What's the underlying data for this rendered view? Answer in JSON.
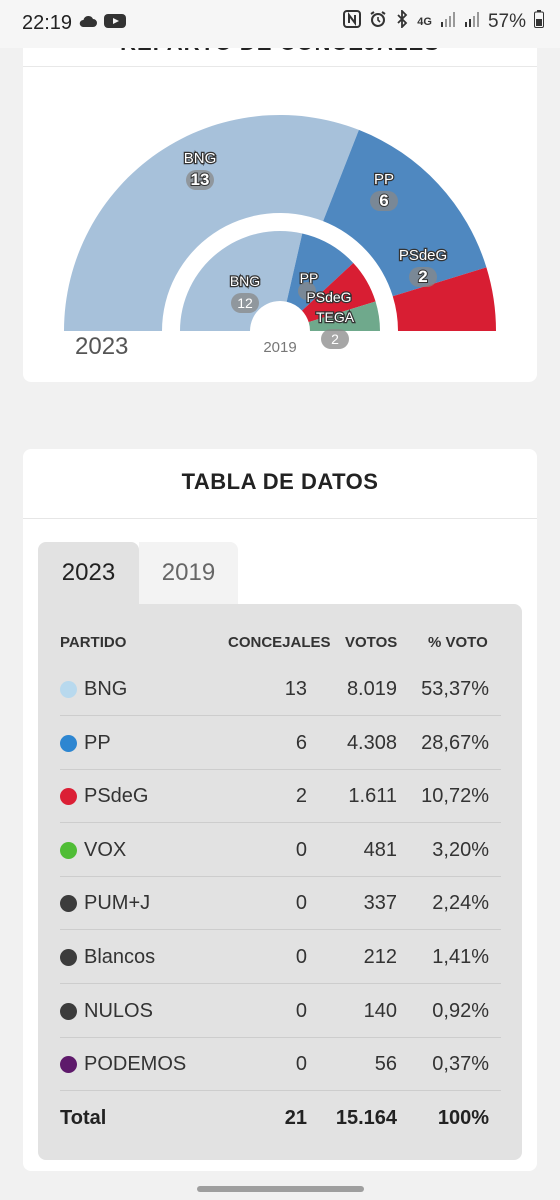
{
  "status_bar": {
    "time": "22:19",
    "network": "4G",
    "battery": "57%",
    "icons": [
      "cloud-icon",
      "youtube-icon",
      "nfc-icon",
      "alarm-icon",
      "bluetooth-icon",
      "signal-icon",
      "signal-icon",
      "battery-icon"
    ]
  },
  "chart_card": {
    "title": "REPARTO DE CONCEJALES"
  },
  "chart_data": {
    "type": "pie",
    "variant": "nested-semicircle-parliament",
    "series": [
      {
        "name": "2023",
        "slices": [
          {
            "label": "BNG",
            "value": 13,
            "color": "#a7c1da"
          },
          {
            "label": "PP",
            "value": 6,
            "color": "#4f88c0"
          },
          {
            "label": "PSdeG",
            "value": 2,
            "color": "#d81e33"
          }
        ]
      },
      {
        "name": "2019",
        "slices": [
          {
            "label": "BNG",
            "value": 12,
            "color": "#a7c1da"
          },
          {
            "label": "PP",
            "value": 4,
            "color": "#4f88c0"
          },
          {
            "label": "PSdeG",
            "value": 3,
            "color": "#d81e33"
          },
          {
            "label": "TEGA",
            "value": 2,
            "color": "#6fa98c"
          }
        ]
      }
    ]
  },
  "table": {
    "title": "TABLA DE DATOS",
    "tabs": [
      {
        "label": "2023",
        "active": true
      },
      {
        "label": "2019",
        "active": false
      }
    ],
    "headers": {
      "partido": "PARTIDO",
      "concejales": "CONCEJALES",
      "votos": "VOTOS",
      "pct": "% VOTO"
    },
    "rows": [
      {
        "party": "BNG",
        "concejales": "13",
        "votos": "8.019",
        "pct": "53,37%",
        "color": "#b8d9ee"
      },
      {
        "party": "PP",
        "concejales": "6",
        "votos": "4.308",
        "pct": "28,67%",
        "color": "#2d86d1"
      },
      {
        "party": "PSdeG",
        "concejales": "2",
        "votos": "1.611",
        "pct": "10,72%",
        "color": "#db1f35"
      },
      {
        "party": "VOX",
        "concejales": "0",
        "votos": "481",
        "pct": "3,20%",
        "color": "#50bd36"
      },
      {
        "party": "PUM+J",
        "concejales": "0",
        "votos": "337",
        "pct": "2,24%",
        "color": "#3c3c3c"
      },
      {
        "party": "Blancos",
        "concejales": "0",
        "votos": "212",
        "pct": "1,41%",
        "color": "#3c3c3c"
      },
      {
        "party": "NULOS",
        "concejales": "0",
        "votos": "140",
        "pct": "0,92%",
        "color": "#3c3c3c"
      },
      {
        "party": "PODEMOS",
        "concejales": "0",
        "votos": "56",
        "pct": "0,37%",
        "color": "#5e1a6b"
      }
    ],
    "total": {
      "party": "Total",
      "concejales": "21",
      "votos": "15.164",
      "pct": "100%"
    }
  }
}
